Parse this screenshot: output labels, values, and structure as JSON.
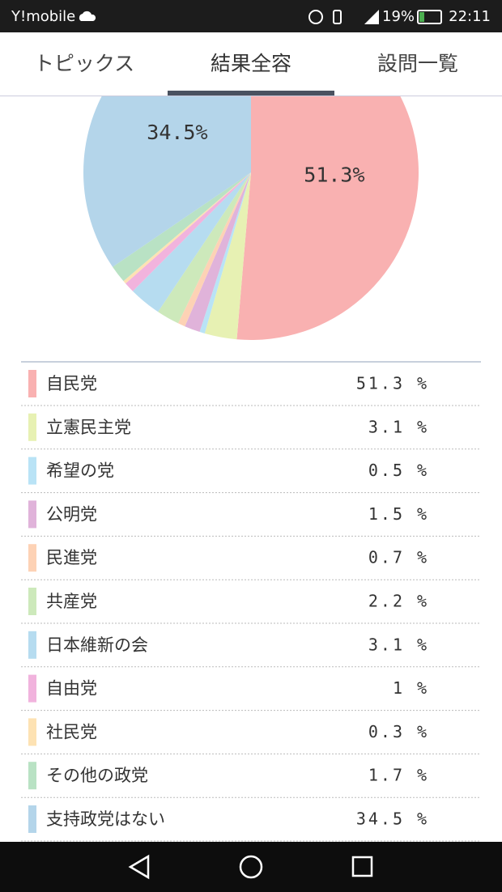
{
  "status_bar": {
    "carrier": "Y!mobile",
    "battery": "19%",
    "time": "22:11"
  },
  "tabs": [
    "トピックス",
    "結果全容",
    "設問一覧"
  ],
  "chart_data": {
    "type": "pie",
    "categories": [
      "自民党",
      "立憲民主党",
      "希望の党",
      "公明党",
      "民進党",
      "共産党",
      "日本維新の会",
      "自由党",
      "社民党",
      "その他の政党",
      "支持政党はない"
    ],
    "values": [
      51.3,
      3.1,
      0.5,
      1.5,
      0.7,
      2.2,
      3.1,
      1.0,
      0.3,
      1.7,
      34.5
    ],
    "value_labels": [
      "51.3%",
      null,
      null,
      null,
      null,
      null,
      null,
      null,
      null,
      null,
      "34.5%"
    ],
    "unit": "%",
    "colors": [
      "#f9b1b1",
      "#e7f1b3",
      "#b9e3f6",
      "#e0b3da",
      "#fdd2b5",
      "#cde9bb",
      "#b6dcf0",
      "#f1b3dd",
      "#fde2b3",
      "#b9e2c4",
      "#b4d5ea"
    ]
  }
}
